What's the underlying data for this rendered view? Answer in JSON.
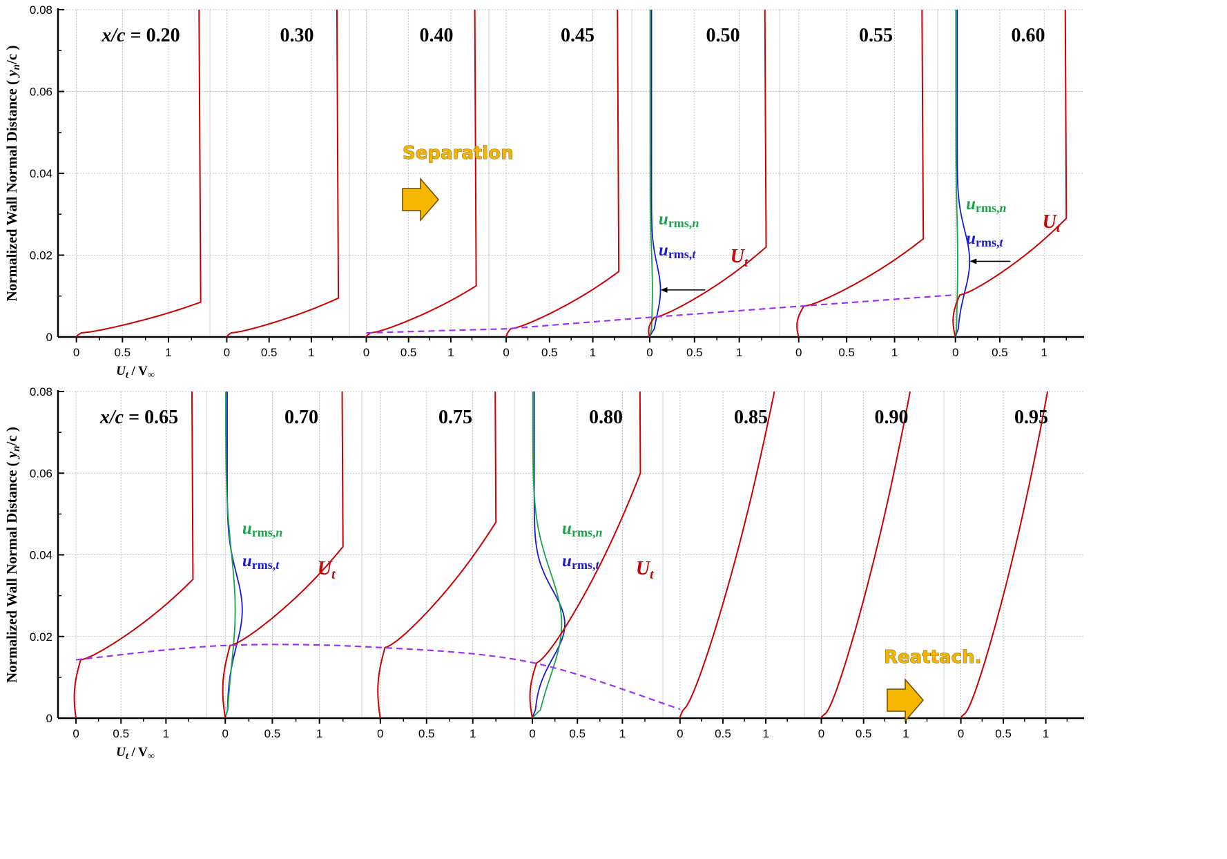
{
  "chart_data": {
    "type": "line",
    "ylabel": "Normalized Wall Normal Distance ( y_n/c )",
    "ylabel_main": "Normalized Wall Normal Distance (",
    "ylabel_var": "y",
    "ylabel_sub": "n",
    "ylabel_tail": "/c )",
    "xlabel_main": "U",
    "xlabel_sub": "t",
    "xlabel_tail": " / V",
    "xlabel_inf": "∞",
    "ylim": [
      0,
      0.08
    ],
    "y_ticks": [
      "0",
      "0.02",
      "0.04",
      "0.06",
      "0.08"
    ],
    "x_ticks": [
      "0",
      "0.5",
      "1"
    ],
    "xlim": [
      -0.2,
      1.45
    ],
    "legend_labels": {
      "u_rms_n": {
        "main": "u",
        "sub": "rms,",
        "sub_i": "n"
      },
      "u_rms_t": {
        "main": "u",
        "sub": "rms,",
        "sub_i": "t"
      },
      "U_t": {
        "main": "U",
        "sub": "t"
      }
    },
    "annotations": [
      {
        "text": "Separation",
        "panel": "0.40"
      },
      {
        "text": "Reattach.",
        "panel": "0.85"
      }
    ],
    "separation_line": {
      "style": "dashed",
      "color": "#9b30ff",
      "top_row": [
        [
          "0.40",
          0.0
        ],
        [
          "0.45",
          0.0025
        ],
        [
          "0.50",
          0.0048
        ],
        [
          "0.55",
          0.0075
        ],
        [
          "0.60",
          0.0103
        ]
      ],
      "bottom_row": [
        [
          "0.65",
          0.0143
        ],
        [
          "0.70",
          0.0178
        ],
        [
          "0.75",
          0.0173
        ],
        [
          "0.80",
          0.0136
        ],
        [
          "0.85",
          0.0022
        ]
      ]
    },
    "rows": [
      {
        "panels": [
          {
            "title": "x/c = 0.20",
            "title_prefix": "x/c",
            "title_value": " = 0.20",
            "U_t_edge": 1.35,
            "U_t_delta": 0.0085,
            "U_t_min": 0.0,
            "U_t_cap": 0.001
          },
          {
            "title": "0.30",
            "U_t_edge": 1.32,
            "U_t_delta": 0.0095,
            "U_t_min": 0.0,
            "U_t_cap": 0.001
          },
          {
            "title": "0.40",
            "U_t_edge": 1.3,
            "U_t_delta": 0.0125,
            "U_t_min": 0.0,
            "U_t_cap": 0.001
          },
          {
            "title": "0.45",
            "U_t_edge": 1.3,
            "U_t_delta": 0.016,
            "U_t_min": 0.0,
            "U_t_cap": 0.002
          },
          {
            "title": "0.50",
            "U_t_edge": 1.3,
            "U_t_delta": 0.022,
            "U_t_min": -0.03,
            "U_t_cap": 0.0048,
            "u_rms_n_peak": 0.025,
            "u_rms_t_peak": 0.1,
            "rms_y": 0.0115,
            "arrow": true,
            "show_labels": true
          },
          {
            "title": "0.55",
            "U_t_edge": 1.3,
            "U_t_delta": 0.024,
            "U_t_min": -0.04,
            "U_t_cap": 0.0075
          },
          {
            "title": "0.60",
            "U_t_edge": 1.25,
            "U_t_delta": 0.029,
            "U_t_min": -0.05,
            "U_t_cap": 0.0103,
            "u_rms_n_peak": 0.02,
            "u_rms_t_peak": 0.14,
            "rms_y": 0.0185,
            "arrow": true,
            "show_labels": true
          }
        ]
      },
      {
        "panels": [
          {
            "title": "x/c = 0.65",
            "title_prefix": "x/c",
            "title_value": " = 0.65",
            "U_t_edge": 1.3,
            "U_t_delta": 0.034,
            "U_t_min": -0.04,
            "U_t_cap": 0.0143
          },
          {
            "title": "0.70",
            "U_t_edge": 1.25,
            "U_t_delta": 0.042,
            "U_t_min": -0.05,
            "U_t_cap": 0.0178,
            "u_rms_n_peak": 0.1,
            "u_rms_t_peak": 0.16,
            "rms_y": 0.0265,
            "show_labels": true
          },
          {
            "title": "0.75",
            "U_t_edge": 1.25,
            "U_t_delta": 0.048,
            "U_t_min": -0.05,
            "U_t_cap": 0.0173
          },
          {
            "title": "0.80",
            "U_t_edge": 1.2,
            "U_t_delta": 0.06,
            "U_t_min": -0.05,
            "U_t_cap": 0.0136,
            "u_rms_n_peak": 0.32,
            "u_rms_t_peak": 0.34,
            "rms_y": 0.023,
            "show_labels": true
          },
          {
            "title": "0.85",
            "U_t_edge": 1.1,
            "U_t_delta": 0.08,
            "U_t_min": 0.0,
            "U_t_cap": 0.0022
          },
          {
            "title": "0.90",
            "U_t_edge": 1.05,
            "U_t_delta": 0.08,
            "U_t_min": 0.0,
            "U_t_cap": 0.001
          },
          {
            "title": "0.95",
            "U_t_edge": 1.02,
            "U_t_delta": 0.08,
            "U_t_min": 0.0,
            "U_t_cap": 0.001
          }
        ]
      }
    ],
    "colors": {
      "U_t": "#cc0000",
      "u_rms_n": "#1aa34a",
      "u_rms_t": "#1a1ad6",
      "separation": "#9b30ff",
      "arrow": "#f5b700",
      "grid": "#b0b0b0"
    }
  }
}
